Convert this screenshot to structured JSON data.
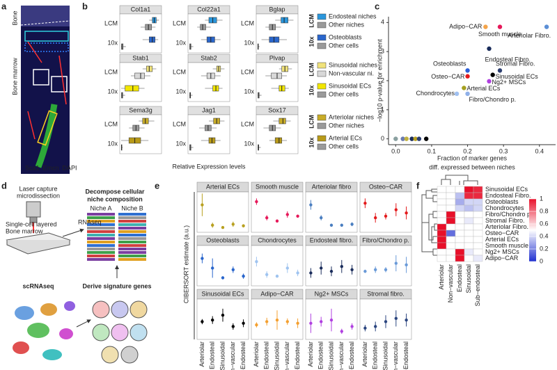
{
  "panel_labels": [
    "a",
    "b",
    "c",
    "d",
    "e",
    "f"
  ],
  "panel_a": {
    "top_label": "Bone",
    "side_label": "Bone marrow",
    "channels": [
      {
        "name": "Sca1",
        "color": "#35e035"
      },
      {
        "name": "Emcn",
        "color": "#ff2020"
      },
      {
        "name": "DAPI",
        "color": "#5a6aff"
      }
    ]
  },
  "panel_b": {
    "row_labels": [
      "LCM",
      "10x"
    ],
    "x_label": "Relative Expression levels",
    "xlim": [
      0,
      1
    ],
    "groups": [
      {
        "legend": [
          "Endosteal niches",
          "Other niches",
          "Osteoblasts",
          "Other cells"
        ],
        "colors": [
          "#2a96dc",
          "#9a9a9a",
          "#2a66cc",
          "#9a9a9a"
        ],
        "genes": [
          {
            "name": "Col1a1",
            "boxes": [
              [
                0.72,
                0.8,
                0.85,
                0.9,
                0.97
              ],
              [
                0.5,
                0.62,
                0.7,
                0.78,
                0.88
              ],
              [
                0.55,
                0.72,
                0.8,
                0.87,
                0.95
              ],
              [
                0,
                0.01,
                0.02,
                0.05,
                0.12
              ]
            ]
          },
          {
            "name": "Col22a1",
            "boxes": [
              [
                0.4,
                0.5,
                0.6,
                0.7,
                0.85
              ],
              [
                0.2,
                0.28,
                0.34,
                0.42,
                0.55
              ],
              [
                0.3,
                0.45,
                0.55,
                0.65,
                0.8
              ],
              [
                0,
                0.01,
                0.02,
                0.04,
                0.1
              ]
            ]
          },
          {
            "name": "Bglap",
            "boxes": [
              [
                0.45,
                0.6,
                0.68,
                0.78,
                0.92
              ],
              [
                0.2,
                0.3,
                0.38,
                0.46,
                0.6
              ],
              [
                0.1,
                0.3,
                0.42,
                0.55,
                0.75
              ],
              [
                0,
                0.005,
                0.01,
                0.02,
                0.05
              ]
            ]
          }
        ]
      },
      {
        "legend": [
          "Sinusoidal niches",
          "Non-vascular ni.",
          "Sinusoidal ECs",
          "Other cells"
        ],
        "colors": [
          "#f0e27a",
          "#d8d8d8",
          "#f2e600",
          "#9a9a9a"
        ],
        "genes": [
          {
            "name": "Stab1",
            "boxes": [
              [
                0.55,
                0.65,
                0.72,
                0.8,
                0.9
              ],
              [
                0.25,
                0.35,
                0.5,
                0.6,
                0.75
              ],
              [
                0,
                0.1,
                0.3,
                0.45,
                0.6
              ],
              [
                0,
                0.01,
                0.02,
                0.04,
                0.1
              ]
            ]
          },
          {
            "name": "Stab2",
            "boxes": [
              [
                0.6,
                0.7,
                0.75,
                0.8,
                0.9
              ],
              [
                0.3,
                0.45,
                0.55,
                0.65,
                0.8
              ],
              [
                0.4,
                0.6,
                0.68,
                0.75,
                0.85
              ],
              [
                0,
                0.01,
                0.02,
                0.03,
                0.08
              ]
            ]
          },
          {
            "name": "Plvap",
            "boxes": [
              [
                0.55,
                0.62,
                0.7,
                0.78,
                0.88
              ],
              [
                0.2,
                0.35,
                0.5,
                0.62,
                0.75
              ],
              [
                0.35,
                0.55,
                0.62,
                0.7,
                0.8
              ],
              [
                0,
                0.01,
                0.02,
                0.04,
                0.1
              ]
            ]
          }
        ]
      },
      {
        "legend": [
          "Arteriolar niches",
          "Other niches",
          "Arterial ECs",
          "Other cells"
        ],
        "colors": [
          "#c8ac28",
          "#9a9a9a",
          "#b89a18",
          "#9a9a9a"
        ],
        "genes": [
          {
            "name": "Sema3g",
            "boxes": [
              [
                0.45,
                0.55,
                0.62,
                0.7,
                0.85
              ],
              [
                0.2,
                0.3,
                0.38,
                0.46,
                0.6
              ],
              [
                0,
                0.2,
                0.35,
                0.5,
                0.7
              ],
              [
                0,
                0.005,
                0.01,
                0.02,
                0.04
              ]
            ]
          },
          {
            "name": "Jag1",
            "boxes": [
              [
                0.5,
                0.62,
                0.7,
                0.78,
                0.9
              ],
              [
                0.25,
                0.4,
                0.48,
                0.56,
                0.7
              ],
              [
                0.3,
                0.5,
                0.58,
                0.66,
                0.8
              ],
              [
                0,
                0.01,
                0.02,
                0.04,
                0.1
              ]
            ]
          },
          {
            "name": "Sox17",
            "boxes": [
              [
                0.4,
                0.55,
                0.65,
                0.72,
                0.85
              ],
              [
                0.15,
                0.3,
                0.38,
                0.46,
                0.6
              ],
              [
                0.3,
                0.45,
                0.55,
                0.62,
                0.75
              ],
              [
                0,
                0.01,
                0.02,
                0.03,
                0.08
              ]
            ]
          }
        ]
      }
    ]
  },
  "chart_data": {
    "type": "scatter",
    "y_label": "−log10 p-value for enrichment",
    "x_label": [
      "Fraction of marker genes",
      "diff. expressed between niches"
    ],
    "xlim": [
      -0.02,
      0.445
    ],
    "ylim": [
      -0.2,
      4.2
    ],
    "xticks": [
      {
        "value": 0,
        "label": "0.0"
      },
      0.1,
      0.2,
      0.3,
      0.4
    ],
    "yticks": [
      0,
      1,
      2,
      3,
      4
    ],
    "points": [
      {
        "label": "Adipo−CAR",
        "color": "#f4a44a",
        "x": 0.25,
        "y": 3.85
      },
      {
        "label": "Smooth muscle",
        "color": "#e6195a",
        "x": 0.29,
        "y": 3.85
      },
      {
        "label": "Arteriolar Fibro.",
        "color": "#5b8fd6",
        "x": 0.42,
        "y": 3.85
      },
      {
        "label": "Endosteal Fibro.",
        "color": "#1a2c5b",
        "x": 0.26,
        "y": 3.1
      },
      {
        "label": "Osteoblasts",
        "color": "#2b5fd9",
        "x": 0.2,
        "y": 2.35
      },
      {
        "label": "Stromal Fibro.",
        "color": "#2c3e70",
        "x": 0.29,
        "y": 2.35
      },
      {
        "label": "Sinusoidal ECs",
        "color": "#000000",
        "x": 0.27,
        "y": 2.2
      },
      {
        "label": "Osteo−CAR",
        "color": "#e31a1c",
        "x": 0.2,
        "y": 2.15
      },
      {
        "label": "Ng2+ MSCs",
        "color": "#b040e0",
        "x": 0.26,
        "y": 1.98
      },
      {
        "label": "Arterial ECs",
        "color": "#a5a020",
        "x": 0.19,
        "y": 1.75
      },
      {
        "label": "Chondrocytes",
        "color": "#a0c0f0",
        "x": 0.17,
        "y": 1.55
      },
      {
        "label": "Fibro/Chondro p.",
        "color": "#8fb0e8",
        "x": 0.2,
        "y": 1.55
      },
      {
        "label": null,
        "color": "#8aa0a0",
        "x": 0,
        "y": 0
      },
      {
        "label": null,
        "color": "#6a7ab0",
        "x": 0.02,
        "y": 0
      },
      {
        "label": null,
        "color": "#c0b040",
        "x": 0.03,
        "y": 0
      },
      {
        "label": null,
        "color": "#1a2c5b",
        "x": 0.045,
        "y": 0
      },
      {
        "label": null,
        "color": "#b8a020",
        "x": 0.055,
        "y": 0
      },
      {
        "label": null,
        "color": "#2c3e70",
        "x": 0.065,
        "y": 0
      },
      {
        "label": null,
        "color": "#000000",
        "x": 0.085,
        "y": 0
      }
    ]
  },
  "panel_d": {
    "lcm": [
      "Laser capture",
      "microdissection"
    ],
    "sample": [
      "Single-cell layered",
      "Bone marrow"
    ],
    "rnaseq": "RNAseq",
    "decompose": [
      "Decompose cellular",
      "niche composition"
    ],
    "niches": [
      "Niche A",
      "Niche B"
    ],
    "scrnaseq": "scRNAseq",
    "signature": "Derive signature genes"
  },
  "panel_e": {
    "y_label": "CIBERSORT estimate (a.u.)",
    "ylim": [
      -0.1,
      1.15
    ],
    "categories": [
      "Arteriolar",
      "Endosteal",
      "Sinusoidal",
      "Non−vascular",
      "Sub−Endosteal"
    ],
    "panels": [
      {
        "title": "Arterial ECs",
        "color": "#b8a020",
        "values": [
          0.75,
          0.12,
          0.05,
          0.15,
          0.1
        ],
        "errors": [
          0.35,
          0.08,
          0.04,
          0.08,
          0.05
        ]
      },
      {
        "title": "Smooth muscle",
        "color": "#e6195a",
        "values": [
          0.85,
          0.35,
          0.25,
          0.45,
          0.4
        ],
        "errors": [
          0.1,
          0.08,
          0.05,
          0.1,
          0.05
        ]
      },
      {
        "title": "Arteriolar fibro",
        "color": "#4a7ec0",
        "values": [
          0.75,
          0.35,
          0.12,
          0.12,
          0.15
        ],
        "errors": [
          0.15,
          0.08,
          0.05,
          0.05,
          0.06
        ]
      },
      {
        "title": "Osteo−CAR",
        "color": "#e31a1c",
        "values": [
          0.8,
          0.35,
          0.4,
          0.6,
          0.5
        ],
        "errors": [
          0.15,
          0.15,
          0.1,
          0.2,
          0.2
        ]
      },
      {
        "title": "Osteoblasts",
        "color": "#2a66cc",
        "values": [
          0.75,
          0.45,
          0.15,
          0.4,
          0.2
        ],
        "errors": [
          0.15,
          0.3,
          0.05,
          0.1,
          0.08
        ]
      },
      {
        "title": "Chondrocytes",
        "color": "#a0c4f0",
        "values": [
          0.65,
          0.25,
          0.2,
          0.45,
          0.3
        ],
        "errors": [
          0.15,
          0.1,
          0.05,
          0.15,
          0.1
        ]
      },
      {
        "title": "Endosteal fibro.",
        "color": "#1a2c5b",
        "values": [
          0.3,
          0.45,
          0.35,
          0.5,
          0.4
        ],
        "errors": [
          0.15,
          0.2,
          0.15,
          0.2,
          0.15
        ]
      },
      {
        "title": "Fibro/Chondro p.",
        "color": "#6a9ad8",
        "values": [
          0.35,
          0.4,
          0.4,
          0.6,
          0.55
        ],
        "errors": [
          0.05,
          0.1,
          0.08,
          0.25,
          0.25
        ]
      },
      {
        "title": "Sinusoidal ECs",
        "color": "#000000",
        "values": [
          0.45,
          0.5,
          0.65,
          0.3,
          0.4
        ],
        "errors": [
          0.08,
          0.12,
          0.2,
          0.1,
          0.12
        ]
      },
      {
        "title": "Adipo−CAR",
        "color": "#f4a030",
        "values": [
          0.35,
          0.45,
          0.5,
          0.45,
          0.4
        ],
        "errors": [
          0.08,
          0.12,
          0.3,
          0.1,
          0.15
        ]
      },
      {
        "title": "Ng2+ MSCs",
        "color": "#b040e0",
        "values": [
          0.4,
          0.45,
          0.5,
          0.15,
          0.3
        ],
        "errors": [
          0.3,
          0.15,
          0.35,
          0.08,
          0.1
        ]
      },
      {
        "title": "Stromal fibro.",
        "color": "#2c4680",
        "values": [
          0.25,
          0.3,
          0.45,
          0.55,
          0.5
        ],
        "errors": [
          0.1,
          0.15,
          0.2,
          0.25,
          0.2
        ]
      }
    ]
  },
  "panel_f": {
    "rows": [
      "Sinusoidal ECs",
      "Endosteal Fibro.",
      "Osteoblasts",
      "Chondrocytes",
      "Fibro/Chondro p.",
      "Stromal Fibro.",
      "Arteriolar Fibro.",
      "Osteo−CAR",
      "Arterial ECs",
      "Smooth muscle",
      "Ng2+ MSCs",
      "Adipo−CAR"
    ],
    "columns": [
      "Arteriolar",
      "Non−vascular",
      "Endosteal",
      "Sinusoidal",
      "Sub−endosteal"
    ],
    "values": [
      [
        0.5,
        0.5,
        0.5,
        1,
        0.95
      ],
      [
        0.5,
        0.5,
        0.35,
        0.95,
        0.95
      ],
      [
        0.5,
        0.5,
        0.3,
        0.4,
        0.4
      ],
      [
        0.5,
        0.5,
        0.4,
        0.35,
        0.4
      ],
      [
        0.5,
        1,
        0.5,
        0.5,
        0.5
      ],
      [
        0.5,
        1,
        0.5,
        0.45,
        0.5
      ],
      [
        1,
        0.5,
        0.5,
        0.5,
        0.5
      ],
      [
        1,
        0.15,
        0.5,
        0.5,
        0.5
      ],
      [
        1,
        0.5,
        0.5,
        0.5,
        0.5
      ],
      [
        1,
        0.5,
        0.5,
        0.5,
        0.5
      ],
      [
        0.5,
        0.5,
        1,
        0.45,
        0.5
      ],
      [
        0.5,
        0.5,
        1,
        0.5,
        0.45
      ]
    ],
    "colorbar_lim": [
      0,
      1
    ],
    "colorbar_ticks": [
      0,
      0.2,
      0.4,
      0.6,
      0.8,
      1
    ]
  }
}
